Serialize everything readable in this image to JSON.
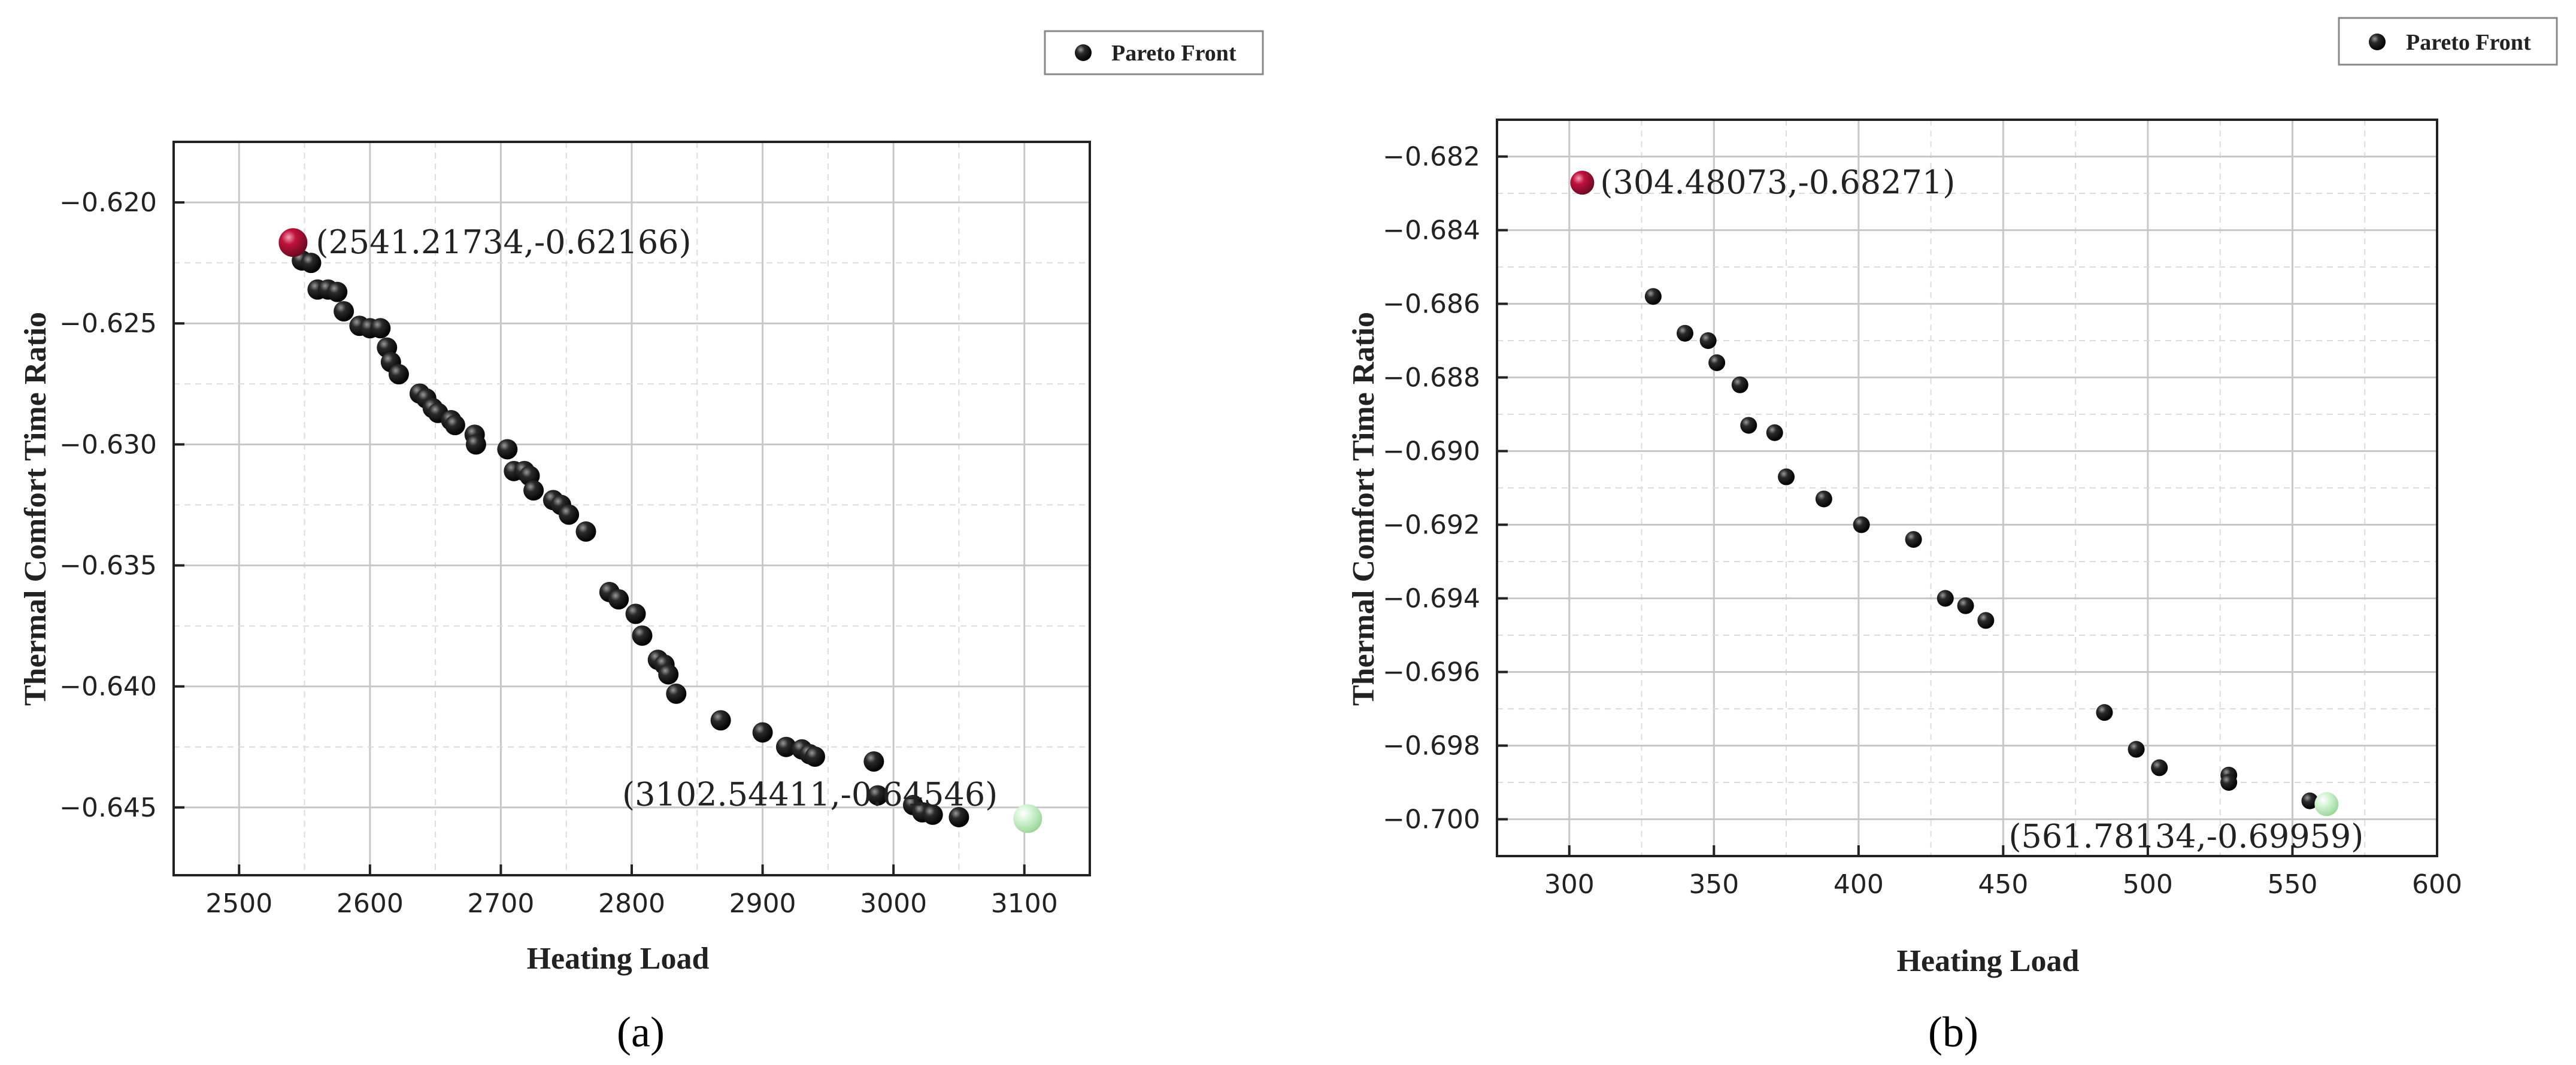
{
  "chart_data": [
    {
      "type": "scatter",
      "panel_label": "(a)",
      "xlabel": "Heating Load",
      "ylabel": "Thermal Comfort Time Ratio",
      "xlim": [
        2450,
        3150
      ],
      "ylim": [
        -0.6478,
        -0.6175
      ],
      "xticks": [
        2500,
        2600,
        2700,
        2800,
        2900,
        3000,
        3100
      ],
      "yticks": [
        -0.62,
        -0.625,
        -0.63,
        -0.635,
        -0.64,
        -0.645
      ],
      "xtick_labels": [
        "2500",
        "2600",
        "2700",
        "2800",
        "2900",
        "3000",
        "3100"
      ],
      "ytick_labels": [
        "−0.620",
        "−0.625",
        "−0.630",
        "−0.635",
        "−0.640",
        "−0.645"
      ],
      "grid": true,
      "legend": {
        "label": "Pareto Front",
        "placement": "top-right"
      },
      "series": [
        {
          "name": "Pareto Front",
          "color": "#111111",
          "points": [
            [
              2548,
              -0.6224
            ],
            [
              2555,
              -0.6225
            ],
            [
              2560,
              -0.6236
            ],
            [
              2568,
              -0.6236
            ],
            [
              2575,
              -0.6237
            ],
            [
              2580,
              -0.6245
            ],
            [
              2592,
              -0.6251
            ],
            [
              2600,
              -0.6252
            ],
            [
              2608,
              -0.6252
            ],
            [
              2613,
              -0.626
            ],
            [
              2616,
              -0.6266
            ],
            [
              2622,
              -0.6271
            ],
            [
              2638,
              -0.6279
            ],
            [
              2643,
              -0.6281
            ],
            [
              2648,
              -0.6285
            ],
            [
              2652,
              -0.6287
            ],
            [
              2662,
              -0.629
            ],
            [
              2665,
              -0.6292
            ],
            [
              2680,
              -0.6296
            ],
            [
              2681,
              -0.63
            ],
            [
              2705,
              -0.6302
            ],
            [
              2710,
              -0.6311
            ],
            [
              2718,
              -0.6311
            ],
            [
              2722,
              -0.6313
            ],
            [
              2725,
              -0.6319
            ],
            [
              2740,
              -0.6323
            ],
            [
              2746,
              -0.6325
            ],
            [
              2752,
              -0.6329
            ],
            [
              2765,
              -0.6336
            ],
            [
              2783,
              -0.6361
            ],
            [
              2790,
              -0.6364
            ],
            [
              2803,
              -0.637
            ],
            [
              2808,
              -0.6379
            ],
            [
              2820,
              -0.6389
            ],
            [
              2825,
              -0.6391
            ],
            [
              2828,
              -0.6395
            ],
            [
              2834,
              -0.6403
            ],
            [
              2868,
              -0.6414
            ],
            [
              2900,
              -0.6419
            ],
            [
              2918,
              -0.6425
            ],
            [
              2930,
              -0.6426
            ],
            [
              2936,
              -0.6428
            ],
            [
              2940,
              -0.6429
            ],
            [
              2985,
              -0.6431
            ],
            [
              2988,
              -0.6445
            ],
            [
              3015,
              -0.6449
            ],
            [
              3022,
              -0.6452
            ],
            [
              3030,
              -0.6453
            ],
            [
              3050,
              -0.6454
            ]
          ]
        }
      ],
      "highlight_points": [
        {
          "x": 2541.21734,
          "y": -0.62166,
          "label": "(2541.21734,-0.62166)",
          "color": "#c0123c"
        },
        {
          "x": 3102.54411,
          "y": -0.64546,
          "label": "(3102.54411,-0.64546)",
          "color": "#b8ecb8"
        }
      ]
    },
    {
      "type": "scatter",
      "panel_label": "(b)",
      "xlabel": "Heating Load",
      "ylabel": "Thermal Comfort Time Ratio",
      "xlim": [
        275,
        600
      ],
      "ylim": [
        -0.701,
        -0.681
      ],
      "xticks": [
        300,
        350,
        400,
        450,
        500,
        550,
        600
      ],
      "yticks": [
        -0.682,
        -0.684,
        -0.686,
        -0.688,
        -0.69,
        -0.692,
        -0.694,
        -0.696,
        -0.698,
        -0.7
      ],
      "xtick_labels": [
        "300",
        "350",
        "400",
        "450",
        "500",
        "550",
        "600"
      ],
      "ytick_labels": [
        "−0.682",
        "−0.684",
        "−0.686",
        "−0.688",
        "−0.690",
        "−0.692",
        "−0.694",
        "−0.696",
        "−0.698",
        "−0.700"
      ],
      "grid": true,
      "legend": {
        "label": "Pareto Front",
        "placement": "top-right"
      },
      "series": [
        {
          "name": "Pareto Front",
          "color": "#111111",
          "points": [
            [
              329,
              -0.6858
            ],
            [
              340,
              -0.6868
            ],
            [
              348,
              -0.687
            ],
            [
              351,
              -0.6876
            ],
            [
              359,
              -0.6882
            ],
            [
              362,
              -0.6893
            ],
            [
              371,
              -0.6895
            ],
            [
              375,
              -0.6907
            ],
            [
              388,
              -0.6913
            ],
            [
              401,
              -0.692
            ],
            [
              419,
              -0.6924
            ],
            [
              430,
              -0.694
            ],
            [
              437,
              -0.6942
            ],
            [
              444,
              -0.6946
            ],
            [
              485,
              -0.6971
            ],
            [
              496,
              -0.6981
            ],
            [
              504,
              -0.6986
            ],
            [
              528,
              -0.6988
            ],
            [
              528,
              -0.699
            ],
            [
              556,
              -0.6995
            ]
          ]
        }
      ],
      "highlight_points": [
        {
          "x": 304.48073,
          "y": -0.68271,
          "label": "(304.48073,-0.68271)",
          "color": "#c0123c"
        },
        {
          "x": 561.78134,
          "y": -0.69959,
          "label": "(561.78134,-0.69959)",
          "color": "#b8ecb8"
        }
      ]
    }
  ]
}
